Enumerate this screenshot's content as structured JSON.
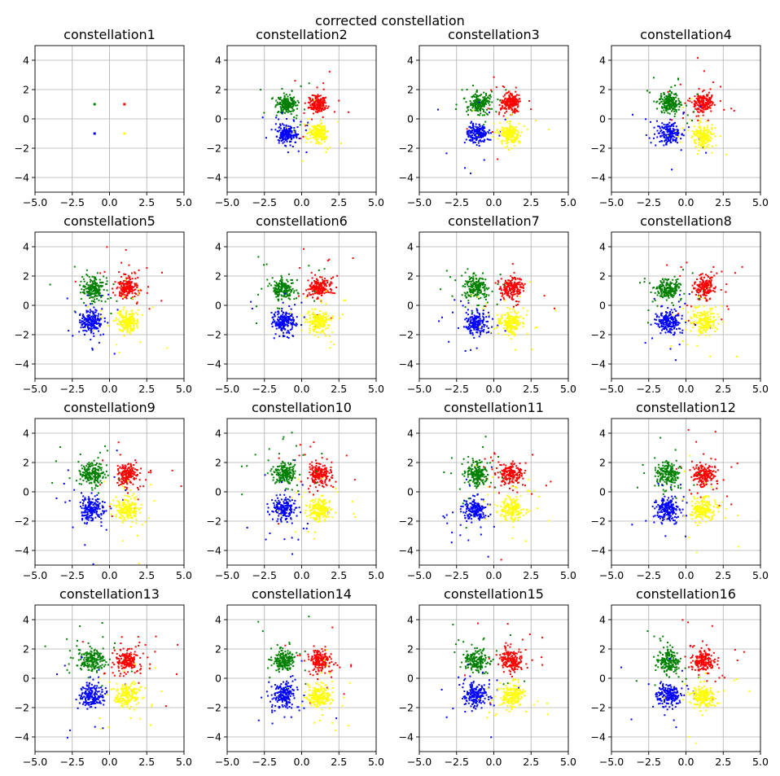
{
  "figure": {
    "suptitle": "corrected constellation"
  },
  "chart_data": {
    "type": "scatter",
    "title": "corrected constellation",
    "grid": true,
    "xlim": [
      -5,
      5
    ],
    "ylim": [
      -5,
      5
    ],
    "xticks": [
      "−5.0",
      "−2.5",
      "0.0",
      "2.5",
      "5.0"
    ],
    "yticks": [
      "−4",
      "−2",
      "0",
      "2",
      "4"
    ],
    "clusters": [
      {
        "color": "#ff0000",
        "center": [
          1,
          1
        ]
      },
      {
        "color": "#008000",
        "center": [
          -1,
          1
        ]
      },
      {
        "color": "#0000ff",
        "center": [
          -1,
          -1
        ]
      },
      {
        "color": "#ffff00",
        "center": [
          1,
          -1
        ]
      }
    ],
    "subplots": [
      {
        "title": "constellation1",
        "spread": 0.0,
        "centers": [
          [
            1,
            1
          ],
          [
            -1,
            1
          ],
          [
            -1,
            -1
          ],
          [
            1,
            -1
          ]
        ],
        "points_per_cluster": 1
      },
      {
        "title": "constellation2",
        "spread": 0.3,
        "centers": [
          [
            1.1,
            1.0
          ],
          [
            -1.0,
            1.0
          ],
          [
            -1.0,
            -1.0
          ],
          [
            1.1,
            -1.0
          ]
        ],
        "points_per_cluster": 200
      },
      {
        "title": "constellation3",
        "spread": 0.32,
        "centers": [
          [
            1.1,
            1.1
          ],
          [
            -1.0,
            1.0
          ],
          [
            -1.1,
            -1.0
          ],
          [
            1.1,
            -1.0
          ]
        ],
        "points_per_cluster": 200
      },
      {
        "title": "constellation4",
        "spread": 0.34,
        "centers": [
          [
            1.1,
            1.1
          ],
          [
            -1.1,
            1.1
          ],
          [
            -1.1,
            -1.0
          ],
          [
            1.1,
            -1.1
          ]
        ],
        "points_per_cluster": 200
      },
      {
        "title": "constellation5",
        "spread": 0.36,
        "centers": [
          [
            1.2,
            1.2
          ],
          [
            -1.1,
            1.1
          ],
          [
            -1.2,
            -1.1
          ],
          [
            1.2,
            -1.1
          ]
        ],
        "points_per_cluster": 200
      },
      {
        "title": "constellation6",
        "spread": 0.36,
        "centers": [
          [
            1.2,
            1.2
          ],
          [
            -1.2,
            1.1
          ],
          [
            -1.2,
            -1.1
          ],
          [
            1.2,
            -1.1
          ]
        ],
        "points_per_cluster": 200
      },
      {
        "title": "constellation7",
        "spread": 0.37,
        "centers": [
          [
            1.2,
            1.2
          ],
          [
            -1.2,
            1.2
          ],
          [
            -1.2,
            -1.2
          ],
          [
            1.2,
            -1.2
          ]
        ],
        "points_per_cluster": 200
      },
      {
        "title": "constellation8",
        "spread": 0.37,
        "centers": [
          [
            1.2,
            1.2
          ],
          [
            -1.2,
            1.1
          ],
          [
            -1.2,
            -1.2
          ],
          [
            1.2,
            -1.1
          ]
        ],
        "points_per_cluster": 200
      },
      {
        "title": "constellation9",
        "spread": 0.38,
        "centers": [
          [
            1.2,
            1.2
          ],
          [
            -1.2,
            1.2
          ],
          [
            -1.2,
            -1.2
          ],
          [
            1.2,
            -1.2
          ]
        ],
        "points_per_cluster": 200
      },
      {
        "title": "constellation10",
        "spread": 0.38,
        "centers": [
          [
            1.2,
            1.2
          ],
          [
            -1.2,
            1.2
          ],
          [
            -1.2,
            -1.2
          ],
          [
            1.2,
            -1.2
          ]
        ],
        "points_per_cluster": 200
      },
      {
        "title": "constellation11",
        "spread": 0.38,
        "centers": [
          [
            1.2,
            1.2
          ],
          [
            -1.2,
            1.2
          ],
          [
            -1.2,
            -1.2
          ],
          [
            1.2,
            -1.2
          ]
        ],
        "points_per_cluster": 200
      },
      {
        "title": "constellation12",
        "spread": 0.38,
        "centers": [
          [
            1.2,
            1.2
          ],
          [
            -1.2,
            1.2
          ],
          [
            -1.2,
            -1.2
          ],
          [
            1.2,
            -1.2
          ]
        ],
        "points_per_cluster": 200
      },
      {
        "title": "constellation13",
        "spread": 0.38,
        "centers": [
          [
            1.2,
            1.2
          ],
          [
            -1.2,
            1.2
          ],
          [
            -1.2,
            -1.2
          ],
          [
            1.2,
            -1.2
          ]
        ],
        "points_per_cluster": 200
      },
      {
        "title": "constellation14",
        "spread": 0.38,
        "centers": [
          [
            1.2,
            1.2
          ],
          [
            -1.2,
            1.2
          ],
          [
            -1.2,
            -1.2
          ],
          [
            1.2,
            -1.2
          ]
        ],
        "points_per_cluster": 200
      },
      {
        "title": "constellation15",
        "spread": 0.38,
        "centers": [
          [
            1.2,
            1.2
          ],
          [
            -1.2,
            1.2
          ],
          [
            -1.2,
            -1.2
          ],
          [
            1.2,
            -1.2
          ]
        ],
        "points_per_cluster": 200
      },
      {
        "title": "constellation16",
        "spread": 0.38,
        "centers": [
          [
            1.2,
            1.2
          ],
          [
            -1.2,
            1.2
          ],
          [
            -1.2,
            -1.2
          ],
          [
            1.2,
            -1.2
          ]
        ],
        "points_per_cluster": 200
      }
    ]
  }
}
